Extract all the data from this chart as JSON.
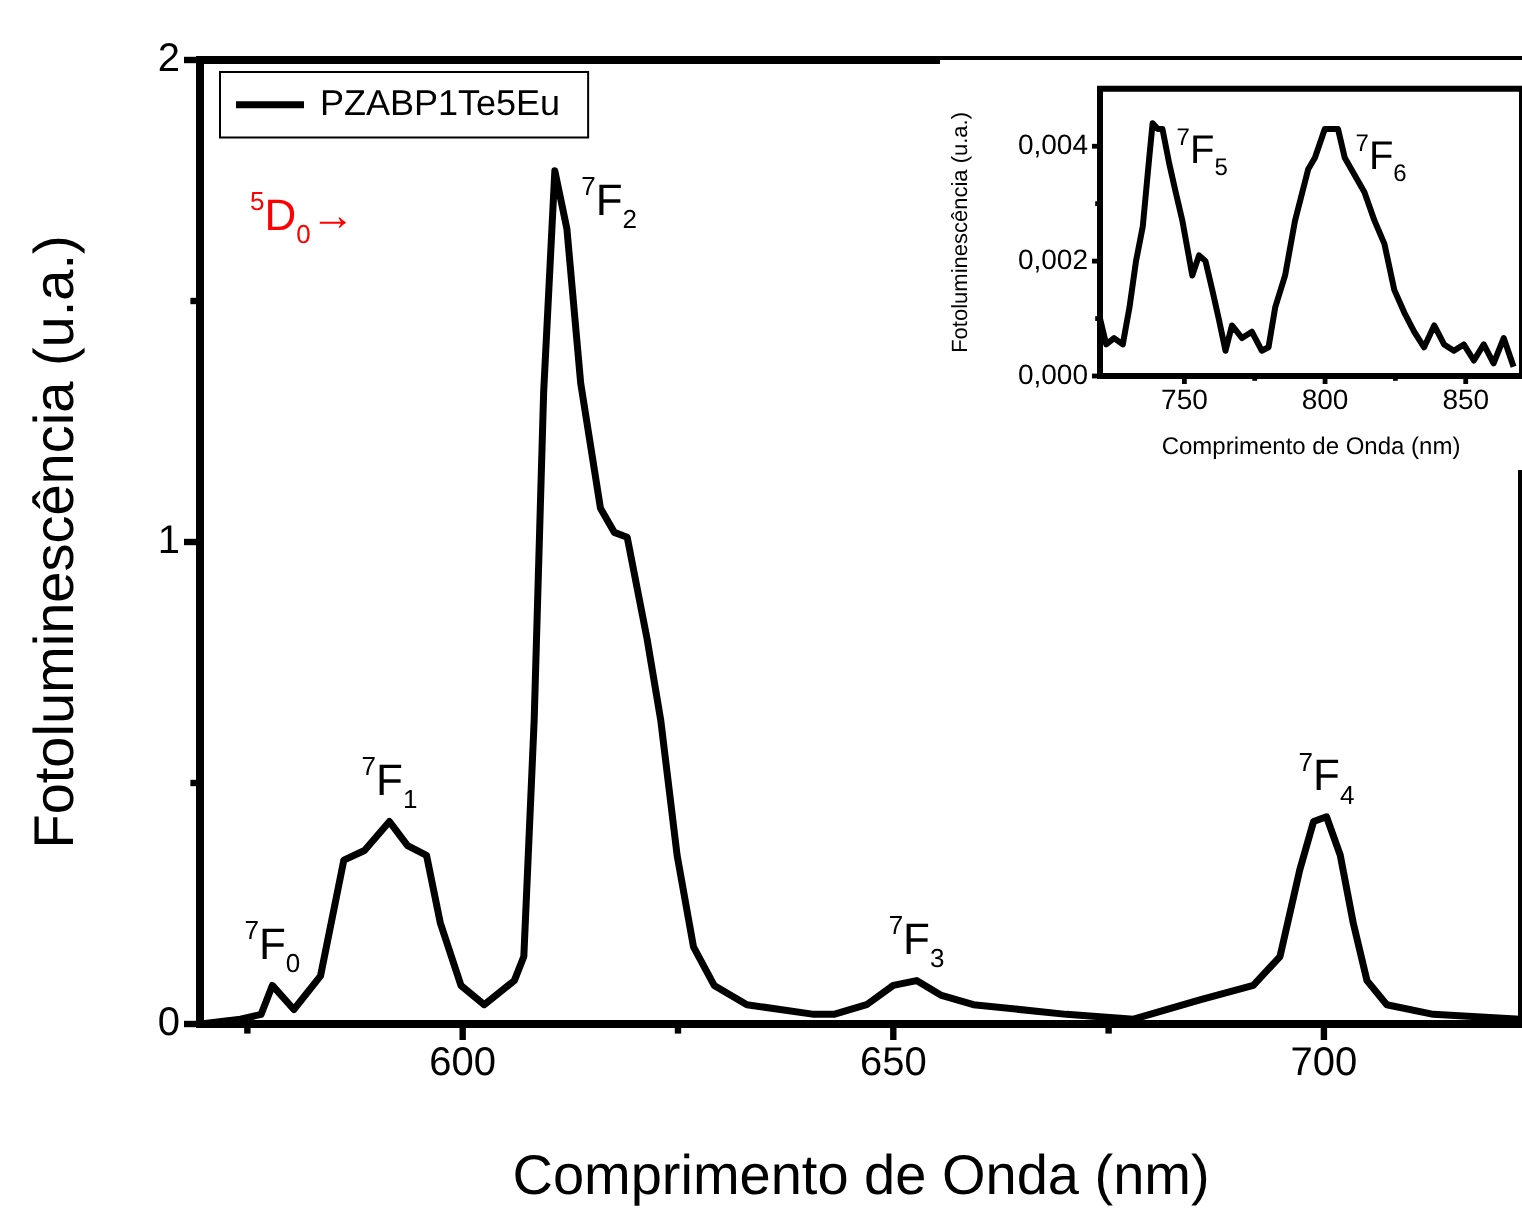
{
  "chart_data": [
    {
      "type": "line",
      "xlabel": "Comprimento de Onda (nm)",
      "ylabel": "Fotoluminescência (u.a.)",
      "xlim": [
        569.5,
        723
      ],
      "ylim": [
        0,
        2
      ],
      "xticks": [
        {
          "value": 575,
          "label": null
        },
        600,
        {
          "value": 625,
          "label": null
        },
        650,
        {
          "value": 675,
          "label": null
        },
        700
      ],
      "yticks": [
        0,
        {
          "value": 0.5,
          "label": null
        },
        1,
        {
          "value": 1.5,
          "label": null
        },
        2
      ],
      "legend": "top left",
      "marker": "none",
      "x": [
        569.6,
        574.2,
        576.6,
        577.9,
        580.4,
        583.5,
        586.2,
        588.6,
        591.5,
        593.6,
        595.8,
        597.4,
        599.8,
        602.5,
        606.0,
        607.1,
        608.3,
        609.4,
        610.7,
        612.1,
        613.7,
        616.0,
        617.6,
        619.1,
        621.4,
        623.0,
        624.9,
        626.8,
        629.2,
        633.0,
        640.8,
        643.1,
        646.9,
        650.0,
        652.7,
        655.5,
        659.3,
        670.1,
        677.9,
        685.6,
        691.8,
        694.9,
        697.2,
        698.8,
        700.3,
        701.9,
        703.4,
        705.0,
        707.3,
        712.7,
        722.8
      ],
      "series": [
        {
          "name": "PZABP1Te5Eu",
          "color": "#000000",
          "values": [
            0.0,
            0.01,
            0.02,
            0.08,
            0.03,
            0.1,
            0.34,
            0.36,
            0.42,
            0.37,
            0.35,
            0.21,
            0.08,
            0.04,
            0.09,
            0.14,
            0.63,
            1.31,
            1.77,
            1.65,
            1.33,
            1.07,
            1.02,
            1.01,
            0.8,
            0.63,
            0.35,
            0.16,
            0.08,
            0.04,
            0.02,
            0.02,
            0.04,
            0.08,
            0.09,
            0.06,
            0.04,
            0.02,
            0.01,
            0.05,
            0.08,
            0.14,
            0.32,
            0.42,
            0.43,
            0.35,
            0.21,
            0.09,
            0.04,
            0.02,
            0.01
          ]
        }
      ],
      "annotations": [
        "$^{5}$D$_{0}$→",
        {
          "text": "$^{7}$F$_{0}$",
          "x": 577.9,
          "y": 0.08
        },
        {
          "text": "$^{7}$F$_{1}$",
          "x": 591.5,
          "y": 0.42
        },
        {
          "text": "$^{7}$F$_{2}$",
          "x": 610.7,
          "y": 1.77
        },
        {
          "text": "$^{7}$F$_{3}$",
          "x": 652.7,
          "y": 0.09
        },
        {
          "text": "$^{7}$F$_{4}$",
          "x": 700.3,
          "y": 0.43
        }
      ]
    },
    {
      "type": "line",
      "xlabel": "Comprimento de Onda (nm)",
      "ylabel": "Fotoluminescência (u.a.)",
      "xlim": [
        720,
        870
      ],
      "ylim": [
        0,
        0.005
      ],
      "xticks": [
        750,
        {
          "value": 775,
          "label": null
        },
        800,
        {
          "value": 825,
          "label": null
        },
        850
      ],
      "yticks": [
        {
          "value": 0,
          "label": "0,000"
        },
        {
          "value": 0.001,
          "label": null
        },
        {
          "value": 0.002,
          "label": "0,002"
        },
        {
          "value": 0.003,
          "label": null
        },
        {
          "value": 0.004,
          "label": "0,004"
        }
      ],
      "marker": "none",
      "x": [
        720.0,
        722.2,
        725.0,
        728.1,
        730.5,
        732.8,
        735.2,
        737.5,
        738.7,
        740.6,
        742.2,
        744.6,
        746.9,
        749.3,
        752.8,
        755.2,
        757.5,
        759.9,
        762.2,
        764.6,
        766.9,
        770.5,
        774.0,
        777.5,
        779.9,
        782.3,
        785.8,
        789.3,
        794.0,
        796.4,
        799.9,
        802.3,
        804.6,
        807.0,
        810.5,
        814.0,
        817.6,
        821.1,
        824.6,
        828.2,
        831.7,
        835.2,
        838.8,
        842.3,
        845.8,
        849.3,
        852.9,
        856.4,
        859.9,
        863.5,
        867.0
      ],
      "series": [
        {
          "color": "#000000",
          "values": [
            0.001,
            0.00055,
            0.00066,
            0.00055,
            0.0012,
            0.002,
            0.0026,
            0.0038,
            0.0044,
            0.0043,
            0.0043,
            0.0037,
            0.0032,
            0.0027,
            0.00175,
            0.0021,
            0.002,
            0.0015,
            0.001,
            0.00044,
            0.00088,
            0.00066,
            0.00077,
            0.00044,
            0.0005,
            0.0012,
            0.00175,
            0.0027,
            0.0036,
            0.0038,
            0.0043,
            0.0043,
            0.0043,
            0.0038,
            0.0035,
            0.0032,
            0.0027,
            0.0023,
            0.0015,
            0.0011,
            0.00077,
            0.0005,
            0.00088,
            0.00055,
            0.00044,
            0.00055,
            0.00027,
            0.00055,
            0.00022,
            0.00066,
            0.00016
          ]
        }
      ],
      "annotations": [
        {
          "text": "$^{7}$F$_{5}$",
          "x": 738.7,
          "y": 0.0044
        },
        {
          "text": "$^{7}$F$_{6}$",
          "x": 802.3,
          "y": 0.0043
        }
      ]
    }
  ]
}
